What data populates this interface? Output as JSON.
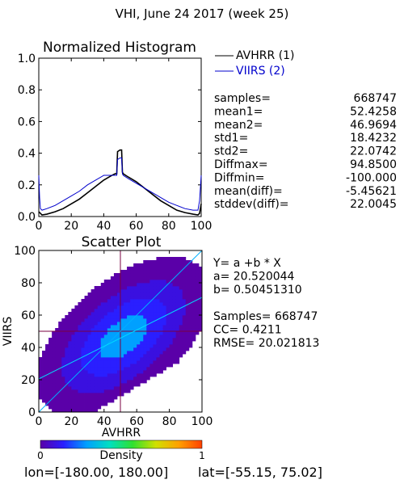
{
  "page_title": "VHI,  June 24 2017 (week 25)",
  "footer": {
    "lon_text": "lon=[-180.00, 180.00]",
    "lat_text": "lat=[-55.15, 75.02]"
  },
  "chart_data": [
    {
      "type": "line",
      "title": "Normalized Histogram",
      "xlim": [
        0,
        100
      ],
      "ylim": [
        0,
        1.0
      ],
      "x_ticks": [
        "0",
        "20",
        "40",
        "60",
        "80",
        "100"
      ],
      "y_ticks": [
        "0.0",
        "0.2",
        "0.4",
        "0.6",
        "0.8",
        "1.0"
      ],
      "grid": false,
      "legend_position": "right",
      "series": [
        {
          "name": "AVHRR (1)",
          "color": "#000000",
          "x": [
            0,
            1,
            2,
            5,
            10,
            15,
            20,
            25,
            30,
            35,
            40,
            45,
            47,
            48,
            48.5,
            50,
            51,
            51.5,
            52,
            55,
            60,
            65,
            70,
            75,
            80,
            85,
            90,
            95,
            98,
            99,
            100
          ],
          "y": [
            0.03,
            0.02,
            0.01,
            0.015,
            0.03,
            0.05,
            0.08,
            0.11,
            0.15,
            0.19,
            0.23,
            0.26,
            0.27,
            0.27,
            0.41,
            0.42,
            0.42,
            0.28,
            0.27,
            0.25,
            0.22,
            0.18,
            0.14,
            0.1,
            0.07,
            0.04,
            0.025,
            0.015,
            0.01,
            0.02,
            0.08
          ]
        },
        {
          "name": "VIIRS (2)",
          "color": "#0000cc",
          "x": [
            0,
            0.5,
            1,
            2,
            5,
            10,
            15,
            20,
            25,
            30,
            35,
            40,
            45,
            48,
            48.5,
            50,
            51,
            51.5,
            52,
            55,
            60,
            65,
            70,
            75,
            80,
            85,
            90,
            95,
            98,
            99,
            100
          ],
          "y": [
            0.26,
            0.12,
            0.05,
            0.04,
            0.05,
            0.07,
            0.1,
            0.13,
            0.16,
            0.2,
            0.23,
            0.26,
            0.26,
            0.26,
            0.36,
            0.37,
            0.37,
            0.27,
            0.26,
            0.24,
            0.21,
            0.18,
            0.15,
            0.12,
            0.09,
            0.07,
            0.05,
            0.04,
            0.04,
            0.1,
            0.26
          ]
        }
      ],
      "stats": [
        {
          "label": "samples=",
          "value": "668747"
        },
        {
          "label": "mean1=",
          "value": "52.4258"
        },
        {
          "label": "mean2=",
          "value": "46.9694"
        },
        {
          "label": "std1=",
          "value": "18.4232"
        },
        {
          "label": "std2=",
          "value": "22.0742"
        },
        {
          "label": "Diffmax=",
          "value": "94.8500"
        },
        {
          "label": "Diffmin=",
          "value": "-100.000"
        },
        {
          "label": "mean(diff)=",
          "value": "-5.45621"
        },
        {
          "label": "stddev(diff)=",
          "value": "22.0045"
        }
      ]
    },
    {
      "type": "heatmap",
      "title": "Scatter Plot",
      "xlabel": "AVHRR",
      "ylabel": "VIIRS",
      "xlim": [
        0,
        100
      ],
      "ylim": [
        0,
        100
      ],
      "x_ticks": [
        "0",
        "20",
        "40",
        "60",
        "80",
        "100"
      ],
      "y_ticks": [
        "0",
        "20",
        "40",
        "60",
        "80",
        "100"
      ],
      "grid": false,
      "regression": {
        "a": 20.520044,
        "b": 0.5045131
      },
      "crosshair": {
        "x": 50,
        "y": 50
      },
      "stats_lines": [
        "Y= a +b * X",
        "a= 20.520044",
        "b= 0.50451310",
        "",
        "Samples= 668747",
        "CC=  0.4211",
        "RMSE= 20.021813"
      ],
      "colorbar": {
        "label": "Density",
        "min_label": "0",
        "max_label": "1",
        "colors": [
          "#5a00a8",
          "#2a1fff",
          "#00a0ff",
          "#00e0c0",
          "#30e030",
          "#d0e000",
          "#ffa000",
          "#ff4000"
        ]
      }
    }
  ]
}
